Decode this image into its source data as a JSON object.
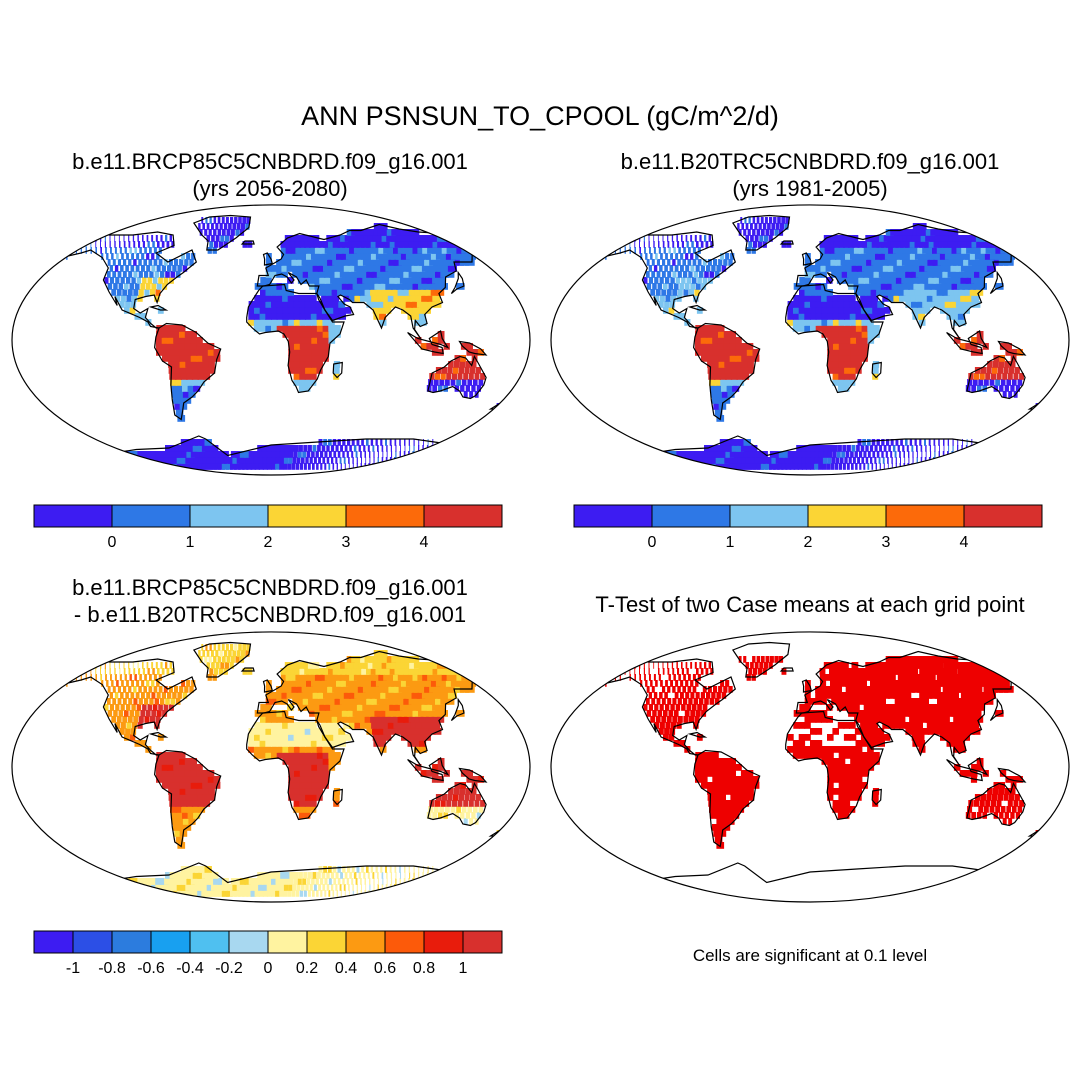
{
  "main_title": "ANN PSNSUN_TO_CPOOL (gC/m^2/d)",
  "panels": [
    {
      "title_line1": "b.e11.BRCP85C5CNBDRD.f09_g16.001",
      "title_line2": "(yrs 2056-2080)"
    },
    {
      "title_line1": "b.e11.B20TRC5CNBDRD.f09_g16.001",
      "title_line2": "(yrs 1981-2005)"
    },
    {
      "title_line1": "b.e11.BRCP85C5CNBDRD.f09_g16.001",
      "title_line2": "- b.e11.B20TRC5CNBDRD.f09_g16.001"
    },
    {
      "title_line1": "T-Test of two Case means at each grid point",
      "title_line2": ""
    }
  ],
  "note": "Cells are significant at 0.1 level",
  "colors": {
    "ocean": "#ffffff",
    "coast": "#000000",
    "sig": "#ee0000",
    "diff_ice": "#fff3a0"
  },
  "chart_data": [
    {
      "type": "heatmap",
      "panel": "case",
      "colorbar_labels": [
        "0",
        "1",
        "2",
        "3",
        "4"
      ],
      "colorbar_colors": [
        "#3d1cf2",
        "#2e78e6",
        "#7dc5f0",
        "#fbd535",
        "#fc6a0a",
        "#d8302d"
      ],
      "regions": {
        "polar": 0,
        "northern": 0,
        "temperate": 1,
        "eastern_us": 3,
        "tropics": 5,
        "subtropics": 2,
        "arid": 0,
        "australia": 0
      }
    },
    {
      "type": "heatmap",
      "panel": "control",
      "colorbar_labels": [
        "0",
        "1",
        "2",
        "3",
        "4"
      ],
      "colorbar_colors": [
        "#3d1cf2",
        "#2e78e6",
        "#7dc5f0",
        "#fbd535",
        "#fc6a0a",
        "#d8302d"
      ],
      "regions": {
        "polar": 0,
        "northern": 0,
        "temperate": 1,
        "eastern_us": 2,
        "tropics": 5,
        "subtropics": 2,
        "arid": 0,
        "australia": 0
      }
    },
    {
      "type": "heatmap",
      "panel": "difference",
      "colorbar_labels": [
        "-1",
        "-0.8",
        "-0.6",
        "-0.4",
        "-0.2",
        "0",
        "0.2",
        "0.4",
        "0.6",
        "0.8",
        "1"
      ],
      "colorbar_colors": [
        "#3d1cf2",
        "#2c4fe6",
        "#2c7cde",
        "#18a0f0",
        "#4fc0f0",
        "#a8d8f0",
        "#fff3a0",
        "#fbd535",
        "#fc9a12",
        "#fc5a0a",
        "#e81c0c",
        "#d8302d"
      ],
      "regions": {
        "polar": 6,
        "northern": 7,
        "temperate": 8,
        "eastern_us": 11,
        "tropics": 11,
        "subtropics": 8,
        "arid": 6,
        "australia": 6
      }
    },
    {
      "type": "heatmap",
      "panel": "t-test",
      "significance_level": 0.1
    }
  ]
}
